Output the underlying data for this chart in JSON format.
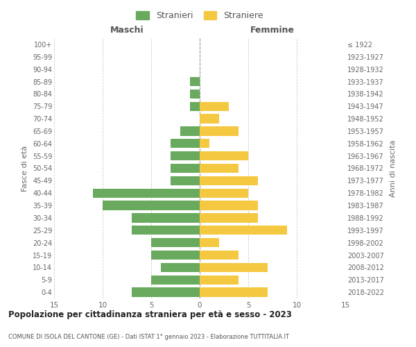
{
  "age_groups": [
    "0-4",
    "5-9",
    "10-14",
    "15-19",
    "20-24",
    "25-29",
    "30-34",
    "35-39",
    "40-44",
    "45-49",
    "50-54",
    "55-59",
    "60-64",
    "65-69",
    "70-74",
    "75-79",
    "80-84",
    "85-89",
    "90-94",
    "95-99",
    "100+"
  ],
  "birth_years": [
    "2018-2022",
    "2013-2017",
    "2008-2012",
    "2003-2007",
    "1998-2002",
    "1993-1997",
    "1988-1992",
    "1983-1987",
    "1978-1982",
    "1973-1977",
    "1968-1972",
    "1963-1967",
    "1958-1962",
    "1953-1957",
    "1948-1952",
    "1943-1947",
    "1938-1942",
    "1933-1937",
    "1928-1932",
    "1923-1927",
    "≤ 1922"
  ],
  "males": [
    7,
    5,
    4,
    5,
    5,
    7,
    7,
    10,
    11,
    3,
    3,
    3,
    3,
    2,
    0,
    1,
    1,
    1,
    0,
    0,
    0
  ],
  "females": [
    7,
    4,
    7,
    4,
    2,
    9,
    6,
    6,
    5,
    6,
    4,
    5,
    1,
    4,
    2,
    3,
    0,
    0,
    0,
    0,
    0
  ],
  "male_color": "#6aaa5e",
  "female_color": "#f5c842",
  "title": "Popolazione per cittadinanza straniera per età e sesso - 2023",
  "subtitle": "COMUNE DI ISOLA DEL CANTONE (GE) - Dati ISTAT 1° gennaio 2023 - Elaborazione TUTTITALIA.IT",
  "xlabel_left": "Maschi",
  "xlabel_right": "Femmine",
  "ylabel_left": "Fasce di età",
  "ylabel_right": "Anni di nascita",
  "legend_male": "Stranieri",
  "legend_female": "Straniere",
  "xlim": 15,
  "bg_color": "#ffffff",
  "grid_color": "#cccccc",
  "bar_height": 0.75,
  "dpi": 100,
  "figsize": [
    6.0,
    5.0
  ]
}
